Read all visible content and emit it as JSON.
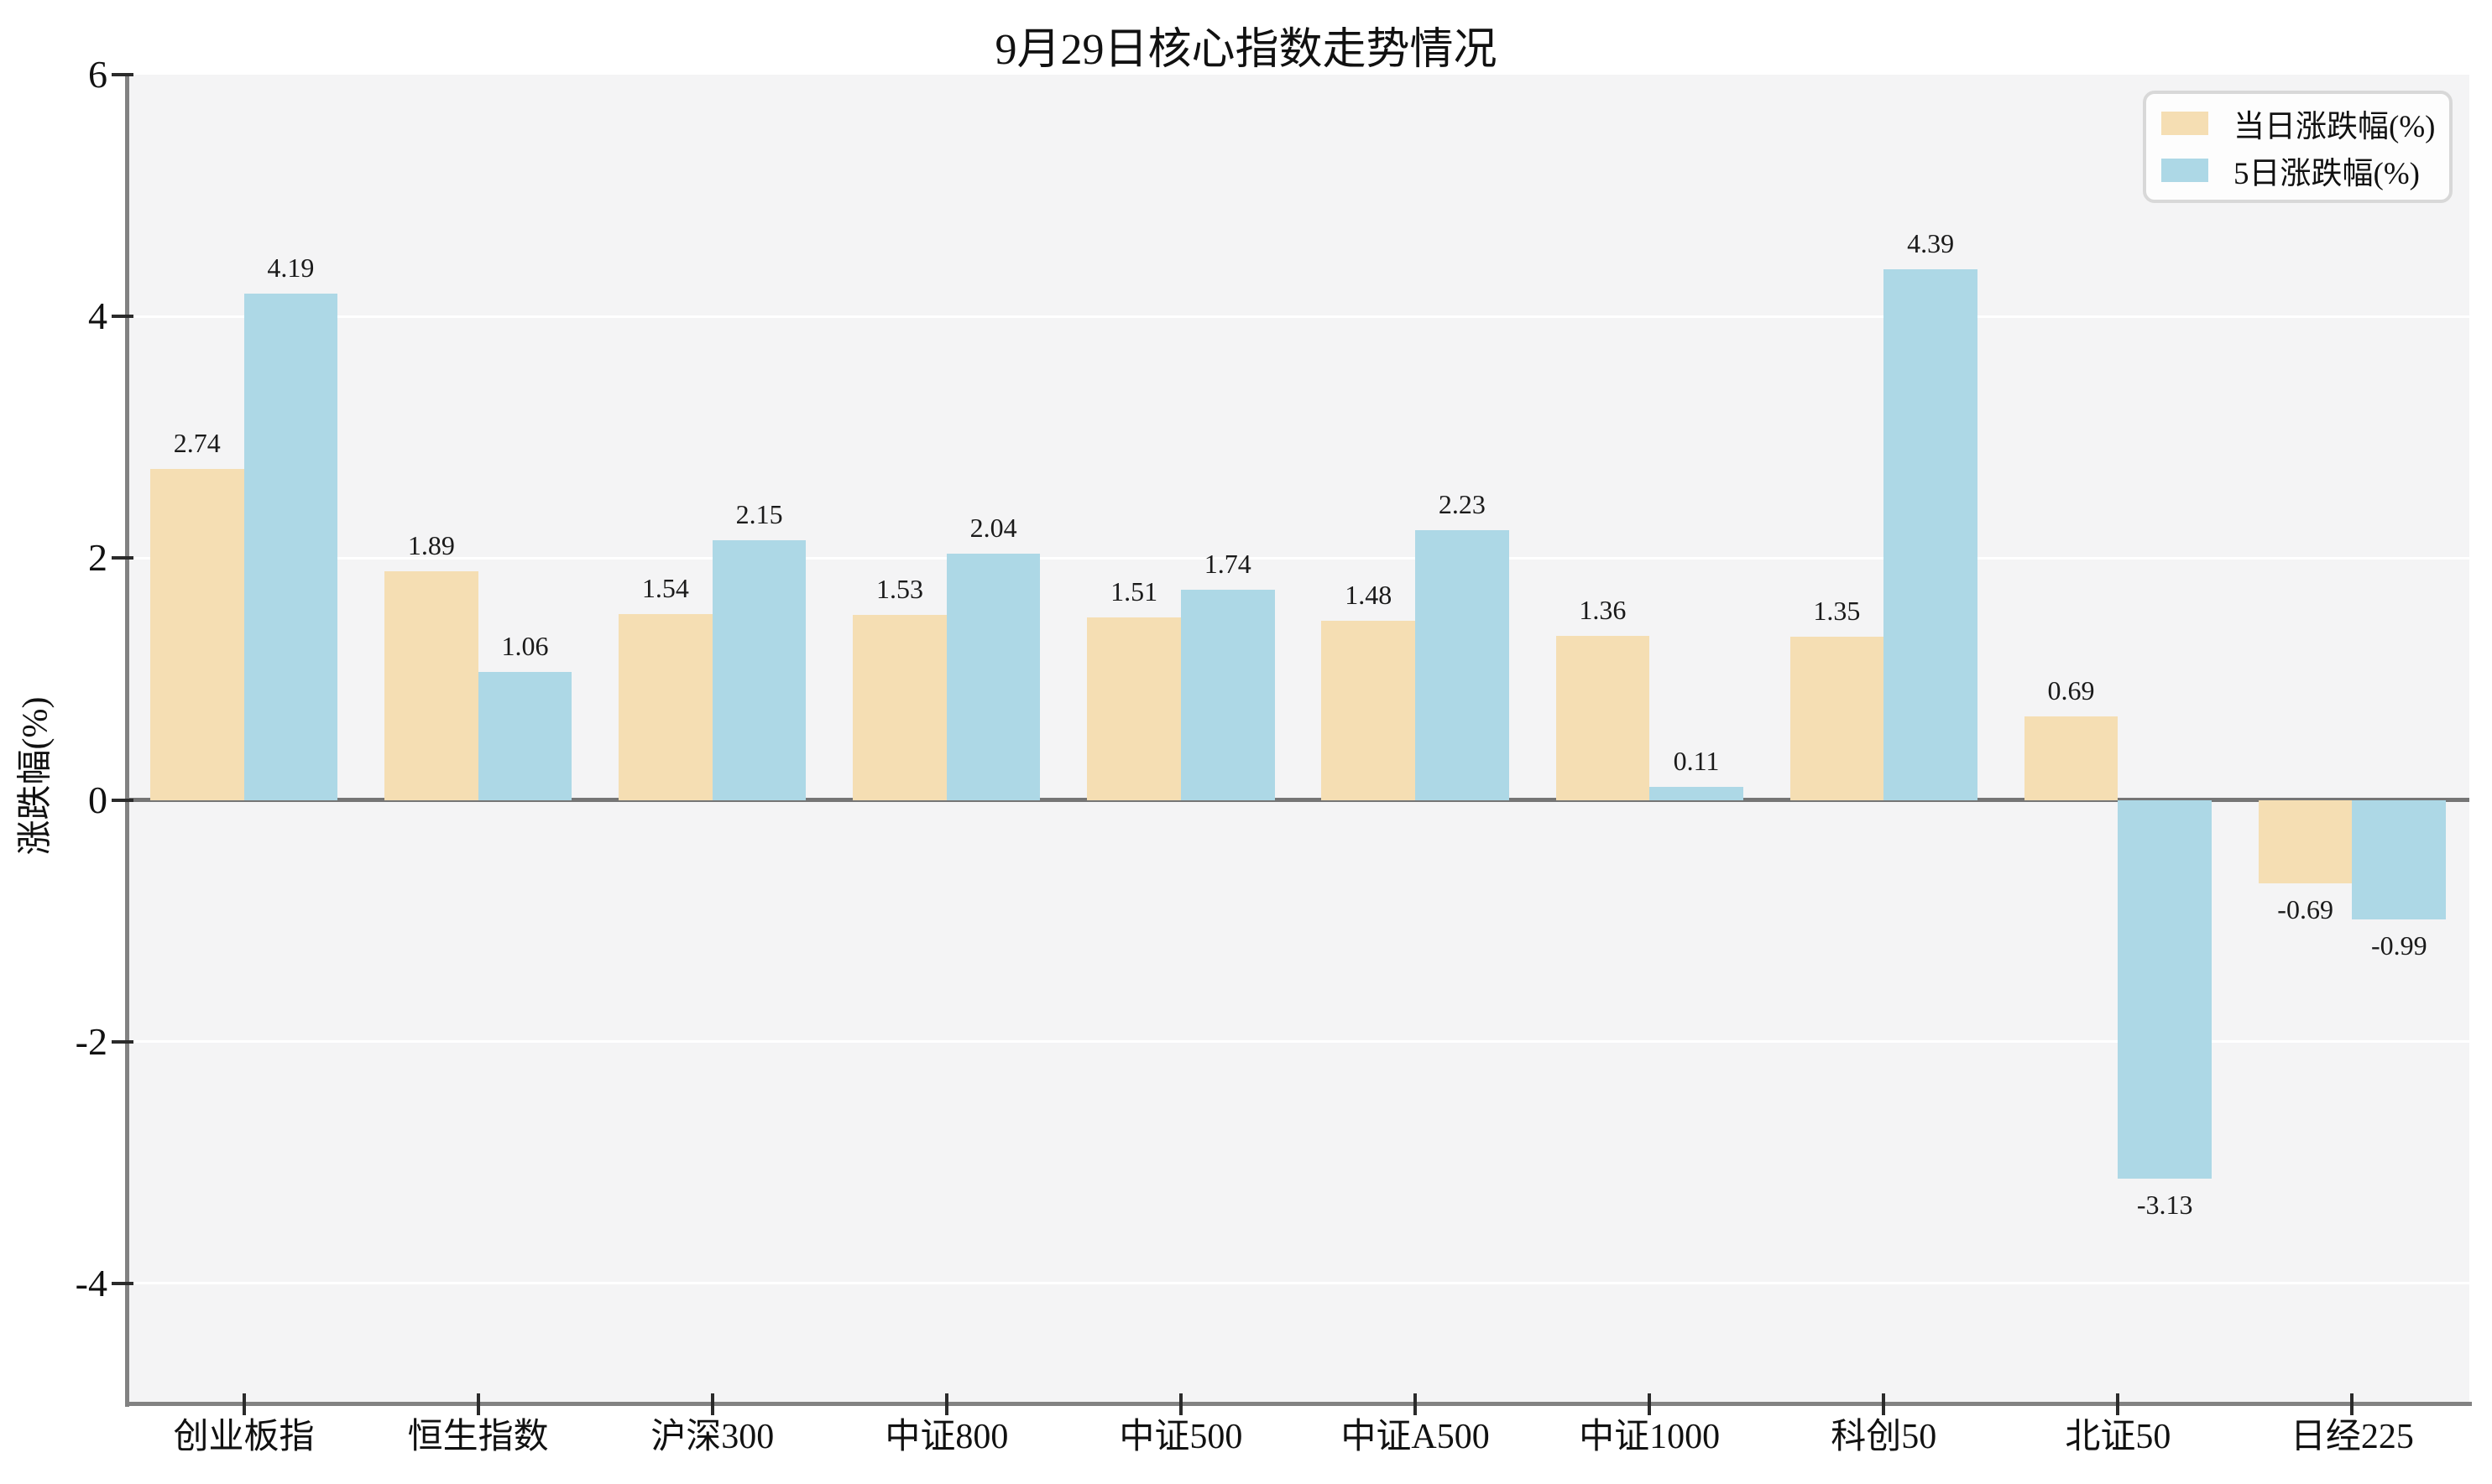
{
  "title": "9月29日核心指数走势情况",
  "y_axis_label": "涨跌幅(%)",
  "legend": {
    "items": [
      {
        "label": "当日涨跌幅(%)",
        "color": "#F5DEB3"
      },
      {
        "label": "5日涨跌幅(%)",
        "color": "#ADD8E6"
      }
    ]
  },
  "chart_data": {
    "type": "bar",
    "title": "9月29日核心指数走势情况",
    "xlabel": "",
    "ylabel": "涨跌幅(%)",
    "categories": [
      "创业板指",
      "恒生指数",
      "沪深300",
      "中证800",
      "中证500",
      "中证A500",
      "中证1000",
      "科创50",
      "北证50",
      "日经225"
    ],
    "series": [
      {
        "name": "当日涨跌幅(%)",
        "color": "#F5DEB3",
        "values": [
          2.74,
          1.89,
          1.54,
          1.53,
          1.51,
          1.48,
          1.36,
          1.35,
          0.69,
          -0.69
        ]
      },
      {
        "name": "5日涨跌幅(%)",
        "color": "#ADD8E6",
        "values": [
          4.19,
          1.06,
          2.15,
          2.04,
          1.74,
          2.23,
          0.11,
          4.39,
          -3.13,
          -0.99
        ]
      }
    ],
    "value_label_decimals": 2,
    "yticks": [
      6,
      4,
      2,
      0,
      -2,
      -4
    ],
    "ylim": [
      -5,
      6
    ],
    "grid": true,
    "gridline_color": "#ffffff",
    "plot_background": "#f4f4f5",
    "zero_line_color": "#757575",
    "legend_position": "top-right"
  }
}
